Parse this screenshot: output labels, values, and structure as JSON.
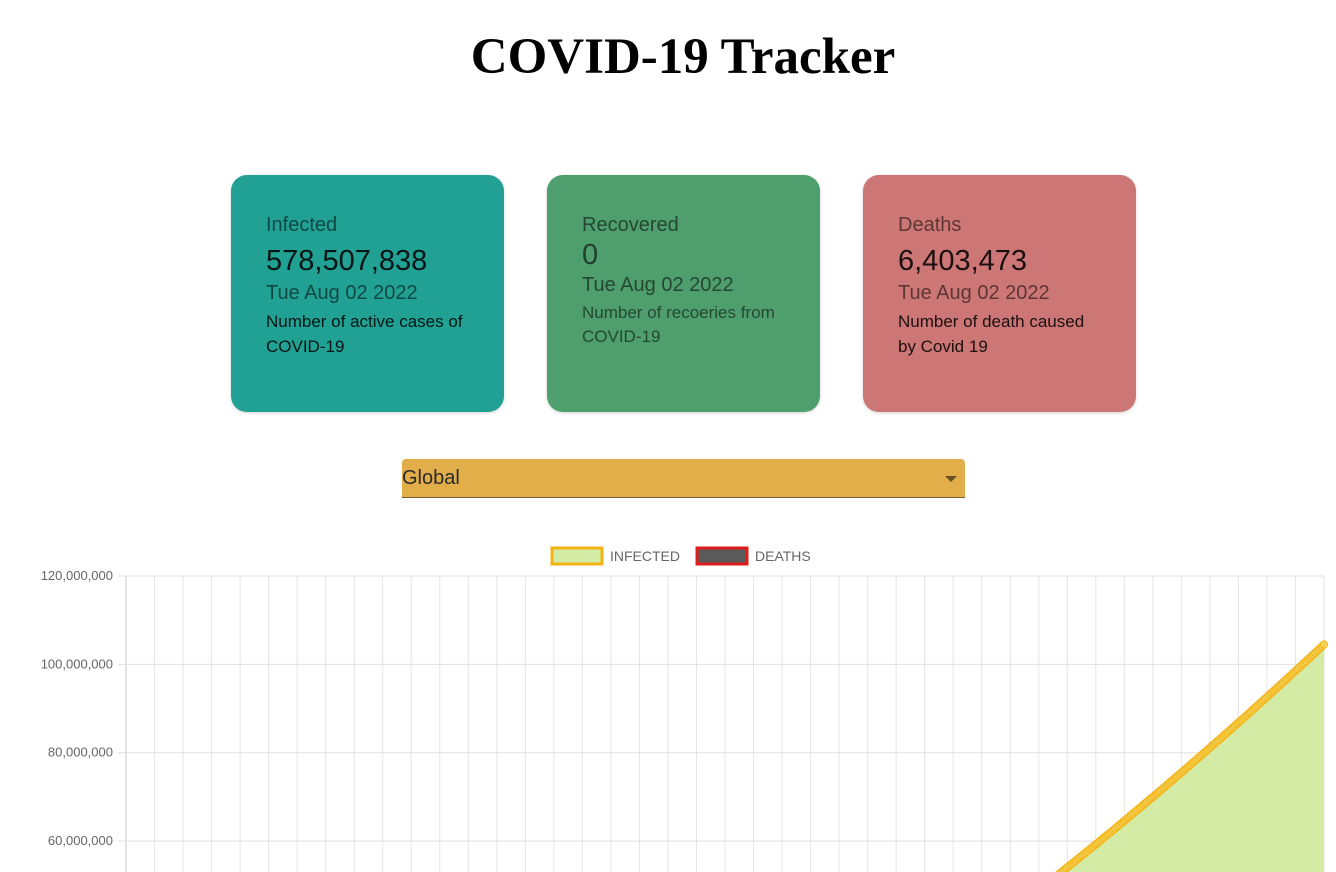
{
  "header": {
    "title": "COVID-19 Tracker"
  },
  "cards": {
    "infected": {
      "label": "Infected",
      "value": "578,507,838",
      "date": "Tue Aug 02 2022",
      "description": "Number of active cases of COVID-19",
      "color": "#21a094"
    },
    "recovered": {
      "label": "Recovered",
      "value": "0",
      "date": "Tue Aug 02 2022",
      "description": "Number of recoeries from COVID-19",
      "color": "#4f9e6d"
    },
    "deaths": {
      "label": "Deaths",
      "value": "6,403,473",
      "date": "Tue Aug 02 2022",
      "description": "Number of death caused by Covid 19",
      "color": "#cd7676"
    }
  },
  "country_picker": {
    "selected": "Global",
    "color": "#e2ae4a"
  },
  "chart_data": {
    "type": "line",
    "legend_position": "top",
    "series": [
      {
        "name": "INFECTED",
        "fill_color": "#d4eba6",
        "border_color": "#f3b313",
        "visible_start": 52000000,
        "visible_end": 104500000,
        "trend": "increasing"
      },
      {
        "name": "DEATHS",
        "fill_color": "#5a5a5a",
        "border_color": "#e01b1b"
      }
    ],
    "y_ticks": [
      "120,000,000",
      "100,000,000",
      "80,000,000",
      "60,000,000"
    ],
    "y_tick_values": [
      120000000,
      100000000,
      80000000,
      60000000
    ],
    "ylim_visible": [
      53000000,
      120000000
    ],
    "grid": true
  }
}
